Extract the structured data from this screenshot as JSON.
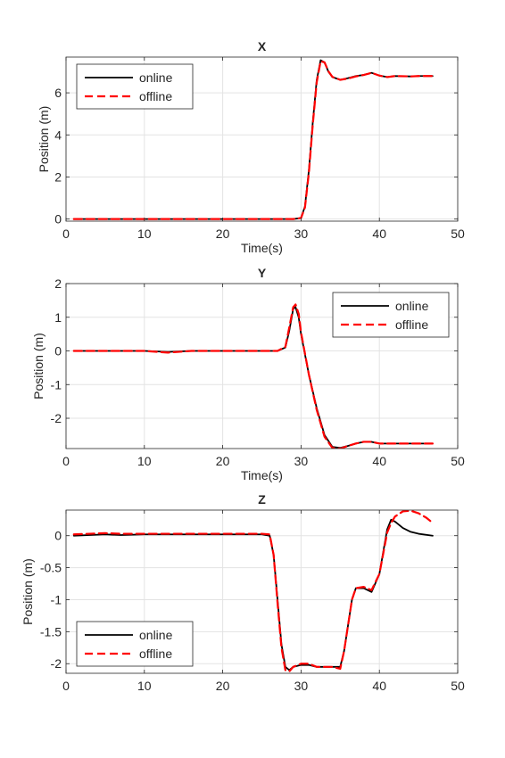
{
  "chart_data": [
    {
      "type": "line",
      "title": "X",
      "xlabel": "Time(s)",
      "ylabel": "Position (m)",
      "xlim": [
        0,
        50
      ],
      "ylim": [
        -0.1,
        7.7
      ],
      "xticks": [
        0,
        10,
        20,
        30,
        40,
        50
      ],
      "yticks": [
        0,
        2,
        4,
        6
      ],
      "ytick_labels": [
        "0",
        "2",
        "4",
        "6"
      ],
      "grid": true,
      "legend": "top-left",
      "series": [
        {
          "name": "online",
          "color": "#000000",
          "style": "solid",
          "points": [
            [
              1,
              0
            ],
            [
              5,
              0
            ],
            [
              10,
              0
            ],
            [
              15,
              0
            ],
            [
              20,
              0
            ],
            [
              25,
              0
            ],
            [
              29,
              0
            ],
            [
              30,
              0.05
            ],
            [
              30.5,
              0.6
            ],
            [
              31,
              2.3
            ],
            [
              31.5,
              4.6
            ],
            [
              32,
              6.6
            ],
            [
              32.5,
              7.55
            ],
            [
              33,
              7.45
            ],
            [
              33.5,
              7.0
            ],
            [
              34,
              6.75
            ],
            [
              35,
              6.62
            ],
            [
              36,
              6.7
            ],
            [
              37,
              6.8
            ],
            [
              38,
              6.85
            ],
            [
              39,
              6.95
            ],
            [
              40,
              6.82
            ],
            [
              41,
              6.75
            ],
            [
              42,
              6.8
            ],
            [
              44,
              6.78
            ],
            [
              45,
              6.8
            ],
            [
              46.8,
              6.8
            ]
          ]
        },
        {
          "name": "offline",
          "color": "#ff0000",
          "style": "dashed",
          "points": [
            [
              1,
              0
            ],
            [
              5,
              0
            ],
            [
              10,
              0
            ],
            [
              15,
              0
            ],
            [
              20,
              0
            ],
            [
              25,
              0
            ],
            [
              29,
              0
            ],
            [
              30,
              0.05
            ],
            [
              30.5,
              0.55
            ],
            [
              31,
              2.2
            ],
            [
              31.5,
              4.5
            ],
            [
              32,
              6.5
            ],
            [
              32.5,
              7.5
            ],
            [
              33,
              7.45
            ],
            [
              33.5,
              7.02
            ],
            [
              34,
              6.76
            ],
            [
              35,
              6.62
            ],
            [
              36,
              6.68
            ],
            [
              37,
              6.78
            ],
            [
              38,
              6.85
            ],
            [
              39,
              6.95
            ],
            [
              40,
              6.82
            ],
            [
              41,
              6.75
            ],
            [
              42,
              6.8
            ],
            [
              44,
              6.78
            ],
            [
              45,
              6.8
            ],
            [
              46.8,
              6.8
            ]
          ]
        }
      ]
    },
    {
      "type": "line",
      "title": "Y",
      "xlabel": "Time(s)",
      "ylabel": "Position (m)",
      "xlim": [
        0,
        50
      ],
      "ylim": [
        -2.9,
        2
      ],
      "xticks": [
        0,
        10,
        20,
        30,
        40,
        50
      ],
      "yticks": [
        -2,
        -1,
        0,
        1,
        2
      ],
      "ytick_labels": [
        "-2",
        "-1",
        "0",
        "1",
        "2"
      ],
      "grid": true,
      "legend": "top-right",
      "series": [
        {
          "name": "online",
          "color": "#000000",
          "style": "solid",
          "points": [
            [
              1,
              0
            ],
            [
              10,
              0
            ],
            [
              13,
              -0.03
            ],
            [
              16,
              0
            ],
            [
              20,
              0
            ],
            [
              25,
              0
            ],
            [
              27,
              0
            ],
            [
              28,
              0.1
            ],
            [
              28.5,
              0.6
            ],
            [
              29,
              1.25
            ],
            [
              29.3,
              1.3
            ],
            [
              29.7,
              1.0
            ],
            [
              30,
              0.5
            ],
            [
              31,
              -0.7
            ],
            [
              32,
              -1.7
            ],
            [
              33,
              -2.5
            ],
            [
              34,
              -2.85
            ],
            [
              35,
              -2.88
            ],
            [
              36,
              -2.82
            ],
            [
              37,
              -2.75
            ],
            [
              38,
              -2.7
            ],
            [
              39,
              -2.7
            ],
            [
              40,
              -2.75
            ],
            [
              42,
              -2.75
            ],
            [
              44,
              -2.75
            ],
            [
              46.8,
              -2.75
            ]
          ]
        },
        {
          "name": "offline",
          "color": "#ff0000",
          "style": "dashed",
          "points": [
            [
              1,
              0
            ],
            [
              10,
              0
            ],
            [
              13,
              -0.05
            ],
            [
              16,
              0
            ],
            [
              20,
              0
            ],
            [
              25,
              0
            ],
            [
              27,
              0
            ],
            [
              28,
              0.12
            ],
            [
              28.5,
              0.7
            ],
            [
              29,
              1.3
            ],
            [
              29.3,
              1.38
            ],
            [
              29.7,
              1.1
            ],
            [
              30,
              0.55
            ],
            [
              31,
              -0.7
            ],
            [
              32,
              -1.75
            ],
            [
              33,
              -2.55
            ],
            [
              34,
              -2.88
            ],
            [
              35,
              -2.9
            ],
            [
              36,
              -2.82
            ],
            [
              37,
              -2.75
            ],
            [
              38,
              -2.7
            ],
            [
              39,
              -2.7
            ],
            [
              40,
              -2.75
            ],
            [
              42,
              -2.75
            ],
            [
              44,
              -2.75
            ],
            [
              46.8,
              -2.75
            ]
          ]
        }
      ]
    },
    {
      "type": "line",
      "title": "Z",
      "xlabel": "",
      "ylabel": "Position (m)",
      "xlim": [
        0,
        50
      ],
      "ylim": [
        -2.15,
        0.4
      ],
      "xticks": [
        0,
        10,
        20,
        30,
        40,
        50
      ],
      "yticks": [
        -2,
        -1.5,
        -1,
        -0.5,
        0
      ],
      "ytick_labels": [
        "-2",
        "-1.5",
        "-1",
        "-0.5",
        "0"
      ],
      "grid": true,
      "legend": "bottom-left",
      "series": [
        {
          "name": "online",
          "color": "#000000",
          "style": "solid",
          "points": [
            [
              1,
              0
            ],
            [
              3,
              0.01
            ],
            [
              5,
              0.02
            ],
            [
              7,
              0.01
            ],
            [
              10,
              0.02
            ],
            [
              15,
              0.02
            ],
            [
              20,
              0.02
            ],
            [
              25,
              0.02
            ],
            [
              26,
              0
            ],
            [
              26.5,
              -0.3
            ],
            [
              27,
              -1.0
            ],
            [
              27.5,
              -1.7
            ],
            [
              28,
              -2.05
            ],
            [
              28.5,
              -2.1
            ],
            [
              29,
              -2.05
            ],
            [
              30,
              -2.02
            ],
            [
              31,
              -2.02
            ],
            [
              32,
              -2.05
            ],
            [
              33,
              -2.05
            ],
            [
              34,
              -2.05
            ],
            [
              35,
              -2.05
            ],
            [
              35.5,
              -1.8
            ],
            [
              36,
              -1.4
            ],
            [
              36.5,
              -1.0
            ],
            [
              37,
              -0.82
            ],
            [
              38,
              -0.82
            ],
            [
              39,
              -0.88
            ],
            [
              40,
              -0.6
            ],
            [
              41,
              0.1
            ],
            [
              41.5,
              0.25
            ],
            [
              42,
              0.22
            ],
            [
              43,
              0.12
            ],
            [
              44,
              0.06
            ],
            [
              45,
              0.03
            ],
            [
              46.8,
              0.0
            ]
          ]
        },
        {
          "name": "offline",
          "color": "#ff0000",
          "style": "dashed",
          "points": [
            [
              1,
              0.02
            ],
            [
              3,
              0.03
            ],
            [
              5,
              0.04
            ],
            [
              7,
              0.03
            ],
            [
              10,
              0.03
            ],
            [
              15,
              0.03
            ],
            [
              20,
              0.03
            ],
            [
              25,
              0.03
            ],
            [
              26,
              0.02
            ],
            [
              26.5,
              -0.3
            ],
            [
              27,
              -1.05
            ],
            [
              27.5,
              -1.75
            ],
            [
              28,
              -2.1
            ],
            [
              28.5,
              -2.12
            ],
            [
              29,
              -2.05
            ],
            [
              30,
              -2.0
            ],
            [
              31,
              -2.0
            ],
            [
              32,
              -2.05
            ],
            [
              33,
              -2.05
            ],
            [
              34,
              -2.05
            ],
            [
              35,
              -2.08
            ],
            [
              35.5,
              -1.8
            ],
            [
              36,
              -1.4
            ],
            [
              36.5,
              -1.0
            ],
            [
              37,
              -0.82
            ],
            [
              38,
              -0.8
            ],
            [
              39,
              -0.85
            ],
            [
              40,
              -0.6
            ],
            [
              41,
              0.05
            ],
            [
              41.5,
              0.2
            ],
            [
              42,
              0.3
            ],
            [
              43,
              0.38
            ],
            [
              44,
              0.39
            ],
            [
              45,
              0.35
            ],
            [
              46,
              0.28
            ],
            [
              46.8,
              0.2
            ]
          ]
        }
      ]
    }
  ]
}
